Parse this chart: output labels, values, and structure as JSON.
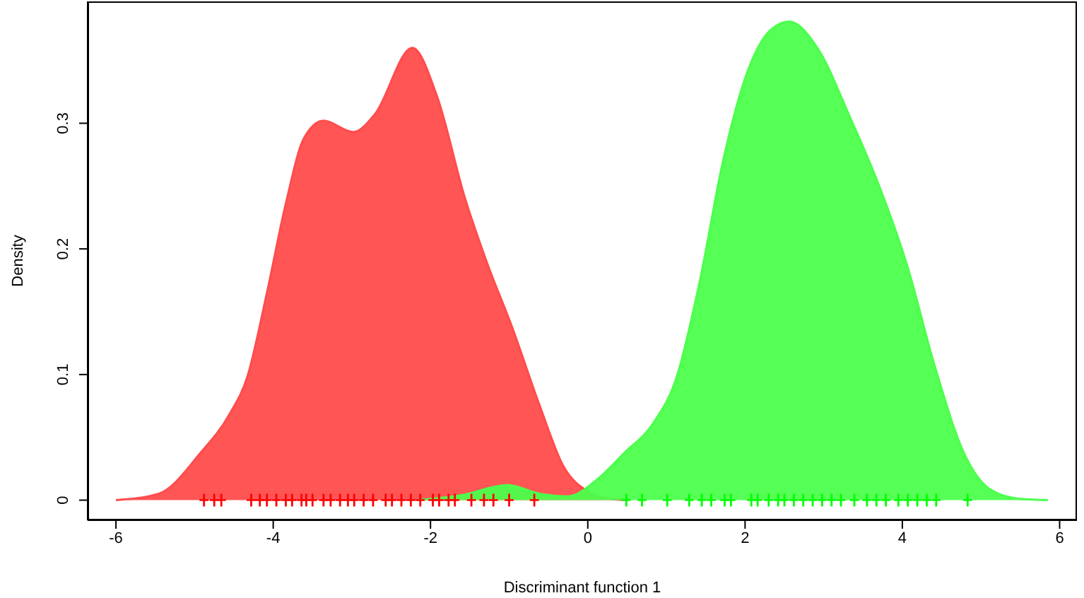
{
  "chart_data": {
    "type": "area",
    "xlabel": "Discriminant function 1",
    "ylabel": "Density",
    "xlim": [
      -6.36,
      6.22
    ],
    "xticks": [
      -6,
      -4,
      -2,
      0,
      2,
      4,
      6
    ],
    "ylim": [
      -0.016,
      0.397
    ],
    "yticks": [
      0,
      0.1,
      0.2,
      0.3
    ],
    "grid": false,
    "legend": false,
    "series": [
      {
        "color": "#ff4c4c",
        "x": [
          -6,
          -5.46,
          -4.92,
          -4.56,
          -4.33,
          -4.08,
          -3.84,
          -3.61,
          -3.36,
          -2.98,
          -2.71,
          -2.23,
          -1.92,
          -1.56,
          -1.27,
          -0.97,
          -0.61,
          -0.31,
          0,
          0.3,
          0.5
        ],
        "values": [
          0,
          0.005,
          0.038,
          0.068,
          0.098,
          0.165,
          0.236,
          0.288,
          0.302,
          0.293,
          0.307,
          0.36,
          0.322,
          0.24,
          0.187,
          0.139,
          0.075,
          0.027,
          0.007,
          0.001,
          0
        ]
      },
      {
        "color": "#4cff4c",
        "x": [
          -2.17,
          -1.6,
          -1.02,
          -0.6,
          -0.25,
          0.11,
          0.47,
          0.83,
          1.13,
          1.42,
          1.72,
          2.03,
          2.32,
          2.56,
          2.92,
          3.34,
          3.7,
          4.06,
          4.42,
          4.78,
          5.13,
          5.5,
          5.85
        ],
        "values": [
          0,
          0.004,
          0.012,
          0.005,
          0.003,
          0.016,
          0.038,
          0.061,
          0.098,
          0.173,
          0.27,
          0.341,
          0.374,
          0.381,
          0.36,
          0.304,
          0.251,
          0.187,
          0.105,
          0.038,
          0.008,
          0.001,
          0
        ]
      },
      {
        "type": "scatter",
        "marker": "cross",
        "color": "#ff0000",
        "x": [
          -4.88,
          -4.75,
          -4.66,
          -4.28,
          -4.17,
          -4.08,
          -3.96,
          -3.84,
          -3.76,
          -3.64,
          -3.58,
          -3.5,
          -3.36,
          -3.27,
          -3.15,
          -3.05,
          -2.97,
          -2.85,
          -2.73,
          -2.57,
          -2.49,
          -2.37,
          -2.25,
          -2.13,
          -1.97,
          -1.89,
          -1.77,
          -1.69,
          -1.48,
          -1.32,
          -1.2,
          -1,
          -0.68
        ],
        "values": [
          0,
          0,
          0,
          0,
          0,
          0,
          0,
          0,
          0,
          0,
          0,
          0,
          0,
          0,
          0,
          0,
          0,
          0,
          0,
          0,
          0,
          0,
          0,
          0,
          0,
          0,
          0,
          0,
          0,
          0,
          0,
          0,
          0
        ]
      },
      {
        "type": "scatter",
        "marker": "cross",
        "color": "#00ff00",
        "x": [
          0.49,
          0.69,
          1.01,
          1.29,
          1.45,
          1.57,
          1.74,
          1.82,
          2.08,
          2.16,
          2.3,
          2.42,
          2.5,
          2.62,
          2.74,
          2.86,
          2.98,
          3.1,
          3.22,
          3.39,
          3.55,
          3.67,
          3.79,
          3.95,
          4.07,
          4.19,
          4.31,
          4.43,
          4.83
        ],
        "values": [
          0,
          0,
          0,
          0,
          0,
          0,
          0,
          0,
          0,
          0,
          0,
          0,
          0,
          0,
          0,
          0,
          0,
          0,
          0,
          0,
          0,
          0,
          0,
          0,
          0,
          0,
          0,
          0,
          0
        ]
      }
    ]
  }
}
